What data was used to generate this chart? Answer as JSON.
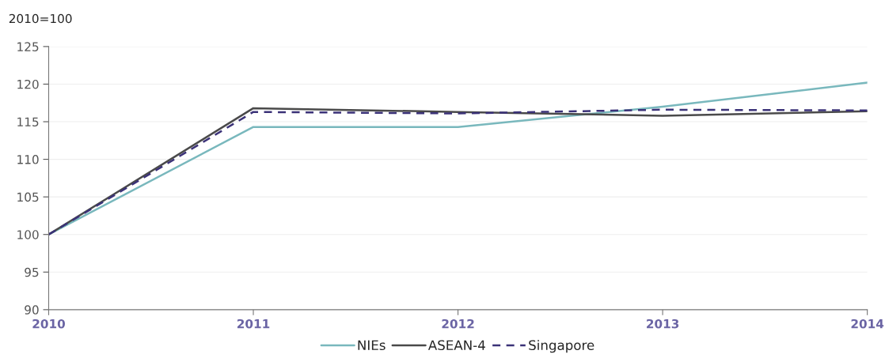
{
  "chart_data": {
    "type": "line",
    "ylabel": "2010=100",
    "categories": [
      "2010",
      "2011",
      "2012",
      "2013",
      "2014"
    ],
    "series": [
      {
        "name": "NIEs",
        "color": "#79b8bd",
        "values": [
          100,
          114.3,
          114.3,
          117.0,
          120.2
        ],
        "line_style": "solid"
      },
      {
        "name": "ASEAN-4",
        "color": "#4a4a4a",
        "values": [
          100,
          116.8,
          116.3,
          115.8,
          116.4
        ],
        "line_style": "solid"
      },
      {
        "name": "Singapore",
        "color": "#3b3278",
        "values": [
          100,
          116.3,
          116.1,
          116.6,
          116.5
        ],
        "line_style": "dashed"
      }
    ],
    "ylim": [
      90,
      125
    ],
    "yticks": [
      90,
      95,
      100,
      105,
      110,
      115,
      120,
      125
    ],
    "grid": "y",
    "legend": "bottom",
    "marker": "none"
  }
}
